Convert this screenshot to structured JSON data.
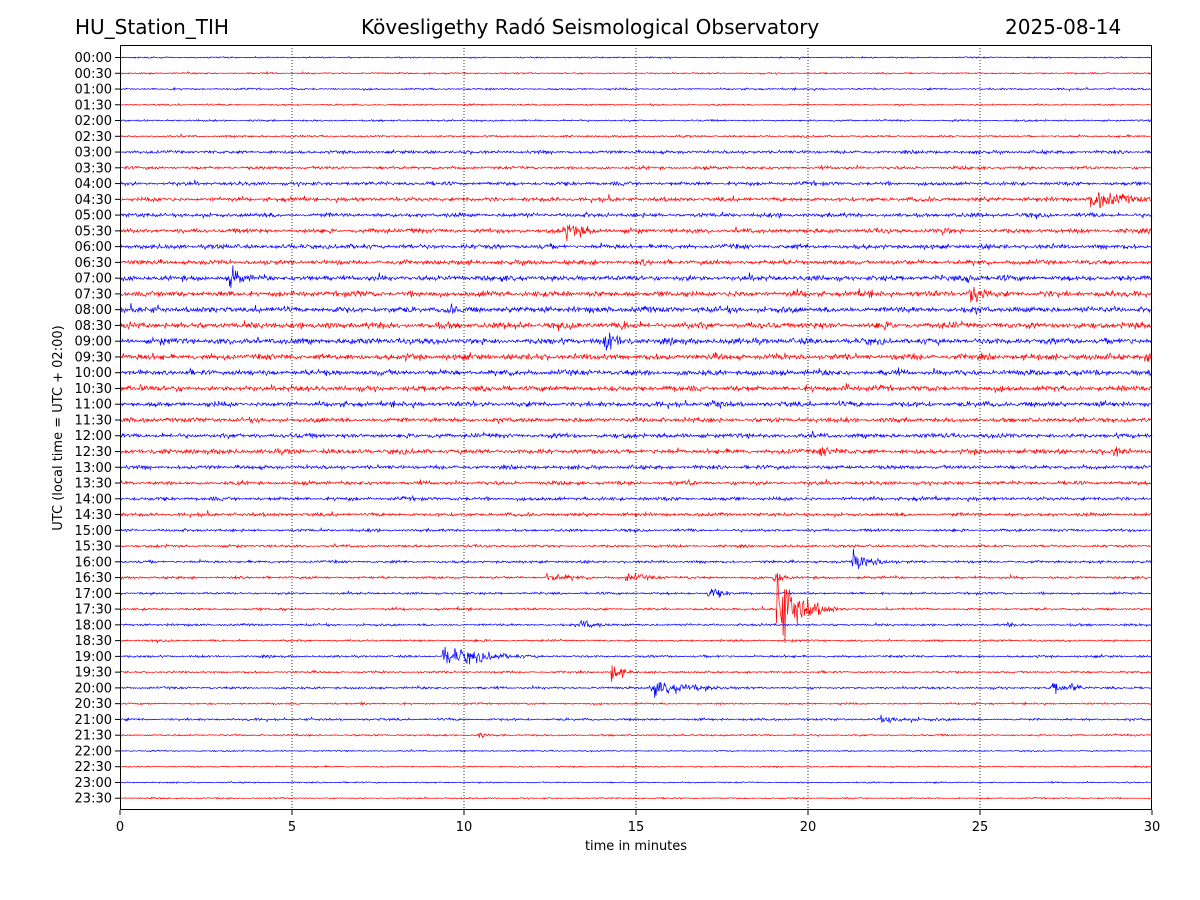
{
  "header": {
    "station": "HU_Station_TIH",
    "title": "Kövesligethy Radó Seismological Observatory",
    "date": "2025-08-14"
  },
  "chart_data": {
    "type": "line",
    "title": "Kövesligethy Radó Seismological Observatory",
    "xlabel": "time in minutes",
    "ylabel": "UTC (local time = UTC + 02:00)",
    "xlim": [
      0,
      30
    ],
    "x_ticks": [
      0,
      5,
      10,
      15,
      20,
      25,
      30
    ],
    "grid": "vertical-dotted",
    "row_labels": [
      "00:00",
      "00:30",
      "01:00",
      "01:30",
      "02:00",
      "02:30",
      "03:00",
      "03:30",
      "04:00",
      "04:30",
      "05:00",
      "05:30",
      "06:00",
      "06:30",
      "07:00",
      "07:30",
      "08:00",
      "08:30",
      "09:00",
      "09:30",
      "10:00",
      "10:30",
      "11:00",
      "11:30",
      "12:00",
      "12:30",
      "13:00",
      "13:30",
      "14:00",
      "14:30",
      "15:00",
      "15:30",
      "16:00",
      "16:30",
      "17:00",
      "17:30",
      "18:00",
      "18:30",
      "19:00",
      "19:30",
      "20:00",
      "20:30",
      "21:00",
      "21:30",
      "22:00",
      "22:30",
      "23:00",
      "23:30"
    ],
    "row_colors": [
      "#0000ff",
      "#ff0000"
    ],
    "noise_level": [
      0.6,
      0.7,
      0.8,
      0.7,
      0.8,
      0.9,
      1.4,
      1.3,
      1.6,
      1.8,
      1.8,
      1.9,
      2.0,
      2.0,
      2.3,
      2.5,
      2.6,
      2.7,
      2.6,
      2.6,
      2.4,
      2.4,
      2.2,
      2.0,
      2.0,
      2.1,
      1.7,
      1.6,
      1.6,
      1.5,
      1.2,
      1.1,
      1.1,
      1.1,
      1.0,
      1.0,
      1.0,
      0.9,
      1.0,
      0.9,
      1.0,
      0.8,
      1.0,
      0.8,
      0.6,
      0.6,
      0.6,
      0.6
    ],
    "events": [
      {
        "row": 9,
        "minute": 28.2,
        "amp": 9,
        "dur": 1.2
      },
      {
        "row": 11,
        "minute": 12.9,
        "amp": 9,
        "dur": 0.7
      },
      {
        "row": 11,
        "minute": 8.4,
        "amp": 3,
        "dur": 0.8
      },
      {
        "row": 11,
        "minute": 23.9,
        "amp": 4,
        "dur": 0.4
      },
      {
        "row": 13,
        "minute": 15.2,
        "amp": 3,
        "dur": 1.0
      },
      {
        "row": 14,
        "minute": 3.2,
        "amp": 11,
        "dur": 0.4
      },
      {
        "row": 14,
        "minute": 24.6,
        "amp": 6,
        "dur": 0.4
      },
      {
        "row": 15,
        "minute": 24.7,
        "amp": 14,
        "dur": 0.4
      },
      {
        "row": 16,
        "minute": 9.5,
        "amp": 6,
        "dur": 0.4
      },
      {
        "row": 17,
        "minute": 14.6,
        "amp": 6,
        "dur": 0.5
      },
      {
        "row": 18,
        "minute": 14.1,
        "amp": 12,
        "dur": 0.5
      },
      {
        "row": 19,
        "minute": 29.8,
        "amp": 5,
        "dur": 0.3
      },
      {
        "row": 21,
        "minute": 21.0,
        "amp": 6,
        "dur": 0.3
      },
      {
        "row": 21,
        "minute": 0.6,
        "amp": 4,
        "dur": 0.6
      },
      {
        "row": 22,
        "minute": 17.3,
        "amp": 7,
        "dur": 0.3
      },
      {
        "row": 25,
        "minute": 20.3,
        "amp": 5,
        "dur": 1.0
      },
      {
        "row": 25,
        "minute": 28.9,
        "amp": 6,
        "dur": 0.4
      },
      {
        "row": 27,
        "minute": 16.5,
        "amp": 4,
        "dur": 0.3
      },
      {
        "row": 32,
        "minute": 21.3,
        "amp": 10,
        "dur": 0.6
      },
      {
        "row": 33,
        "minute": 12.4,
        "amp": 4,
        "dur": 1.0
      },
      {
        "row": 33,
        "minute": 14.7,
        "amp": 4,
        "dur": 0.9
      },
      {
        "row": 33,
        "minute": 19.0,
        "amp": 6,
        "dur": 0.3
      },
      {
        "row": 34,
        "minute": 17.1,
        "amp": 7,
        "dur": 0.4
      },
      {
        "row": 35,
        "minute": 19.1,
        "amp": 38,
        "dur": 0.6
      },
      {
        "row": 35,
        "minute": 4.6,
        "amp": 3,
        "dur": 0.2
      },
      {
        "row": 35,
        "minute": 20.6,
        "amp": 3,
        "dur": 0.3
      },
      {
        "row": 36,
        "minute": 13.4,
        "amp": 5,
        "dur": 0.5
      },
      {
        "row": 36,
        "minute": 25.8,
        "amp": 3,
        "dur": 0.2
      },
      {
        "row": 38,
        "minute": 9.4,
        "amp": 9,
        "dur": 1.3
      },
      {
        "row": 38,
        "minute": 10.7,
        "amp": 4,
        "dur": 0.4
      },
      {
        "row": 39,
        "minute": 14.3,
        "amp": 10,
        "dur": 0.3
      },
      {
        "row": 40,
        "minute": 15.4,
        "amp": 7,
        "dur": 1.4
      },
      {
        "row": 40,
        "minute": 27.1,
        "amp": 7,
        "dur": 0.3
      },
      {
        "row": 40,
        "minute": 27.6,
        "amp": 6,
        "dur": 0.3
      },
      {
        "row": 41,
        "minute": 7.0,
        "amp": 3,
        "dur": 0.2
      },
      {
        "row": 42,
        "minute": 22.0,
        "amp": 3,
        "dur": 2.0
      },
      {
        "row": 43,
        "minute": 10.4,
        "amp": 3,
        "dur": 0.3
      }
    ]
  }
}
